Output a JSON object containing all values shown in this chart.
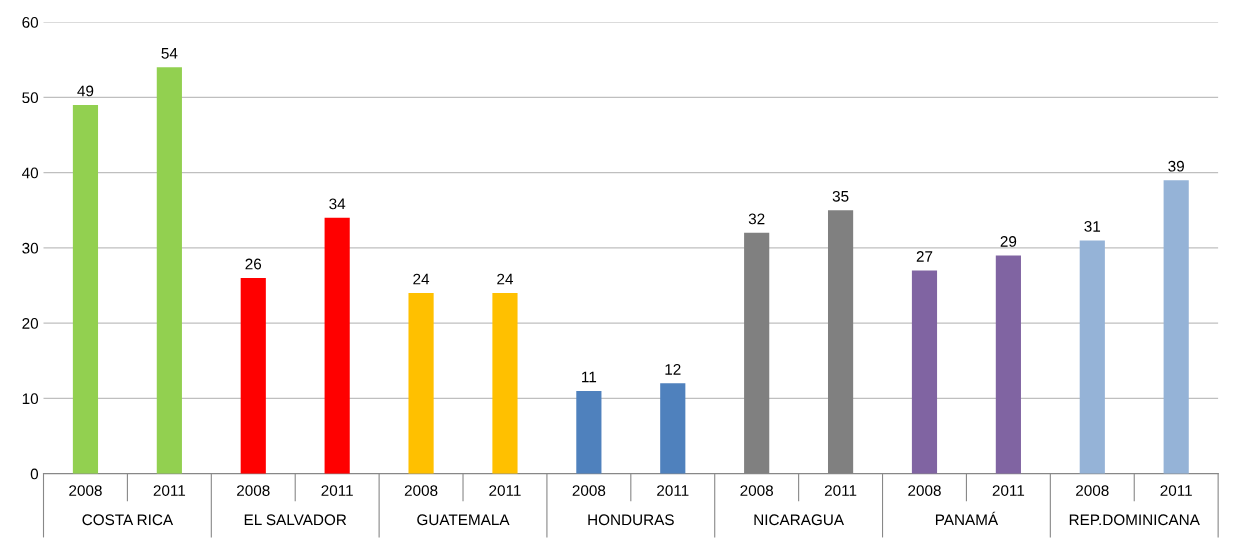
{
  "chart_data": {
    "type": "bar",
    "categories": [
      "2008",
      "2011",
      "2008",
      "2011",
      "2008",
      "2011",
      "2008",
      "2011",
      "2008",
      "2011",
      "2008",
      "2011",
      "2008",
      "2011"
    ],
    "values": [
      49,
      54,
      26,
      34,
      24,
      24,
      11,
      12,
      32,
      35,
      27,
      29,
      31,
      39
    ],
    "colors": [
      "#92d050",
      "#92d050",
      "#ff0000",
      "#ff0000",
      "#ffc000",
      "#ffc000",
      "#4f81bd",
      "#4f81bd",
      "#808080",
      "#808080",
      "#8064a2",
      "#8064a2",
      "#95b3d7",
      "#95b3d7"
    ],
    "annotations": [
      "COSTA RICA",
      "EL SALVADOR",
      "GUATEMALA",
      "HONDURAS",
      "NICARAGUA",
      "PANAMÁ",
      "REP.DOMINICANA"
    ],
    "ylim": [
      0,
      60
    ],
    "yticks": [
      0,
      10,
      20,
      30,
      40,
      50,
      60
    ],
    "grid": "y",
    "data_labels": true,
    "legend": false
  }
}
